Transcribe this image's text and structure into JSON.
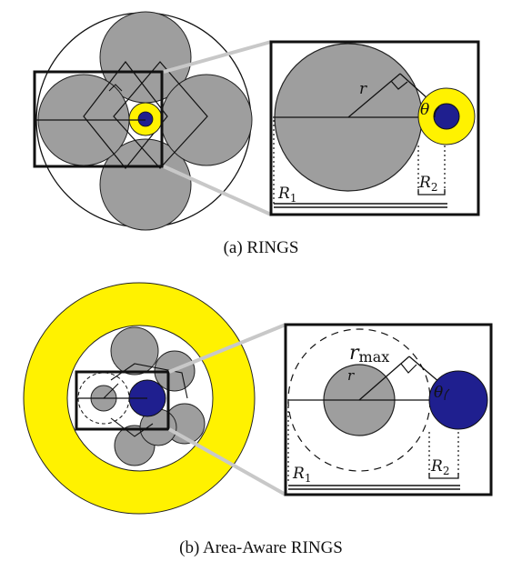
{
  "figure_a": {
    "caption": "(a)  RINGS",
    "labels": {
      "r": "r",
      "theta": "θ",
      "R1": "R",
      "R1_sub": "1",
      "R2": "R",
      "R2_sub": "2"
    }
  },
  "figure_b": {
    "caption": "(b)  Area-Aware RINGS",
    "labels": {
      "rmax": "r",
      "rmax_sub": "max",
      "r": "r",
      "theta": "θ",
      "R1": "R",
      "R1_sub": "1",
      "R2": "R",
      "R2_sub": "2"
    }
  },
  "colors": {
    "gray": "#9e9e9e",
    "yellow": "#fff200",
    "blue": "#1f1f8f",
    "line": "#111111",
    "connector": "#c8c8c8"
  }
}
